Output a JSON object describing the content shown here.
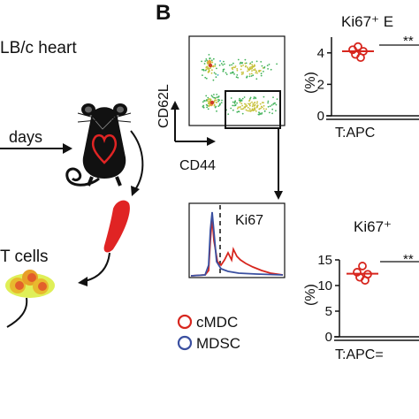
{
  "panel_a": {
    "heart_label": "LB/c heart",
    "arrow_label": "days",
    "cells_label": "T cells"
  },
  "panel_b": {
    "letter": "B",
    "dot_plot": {
      "y_axis": "CD62L",
      "x_axis": "CD44"
    },
    "histogram": {
      "marker": "Ki67"
    },
    "legend": [
      {
        "label": "cMDC",
        "color": "#d7261e"
      },
      {
        "label": "MDSC",
        "color": "#3a4fa0"
      }
    ]
  },
  "colors": {
    "red": "#d7261e",
    "blue": "#3a4fa0",
    "heart_red": "#e02424"
  },
  "chart_data": [
    {
      "type": "scatter",
      "title": "Ki67⁺ E",
      "ylabel": "(%)",
      "xlabel": "T:APC",
      "ylim": [
        0,
        5
      ],
      "yticks": [
        "0",
        "2",
        "4"
      ],
      "significance": "**",
      "series": [
        {
          "name": "cMDC",
          "values": [
            4.4,
            4.2,
            4.1,
            3.9,
            3.7
          ],
          "mean": 4.1
        }
      ]
    },
    {
      "type": "scatter",
      "title": "Ki67⁺",
      "ylabel": "(%)",
      "xlabel": "T:APC=",
      "ylim": [
        0,
        15
      ],
      "yticks": [
        "0",
        "5",
        "10",
        "15"
      ],
      "significance": "**",
      "series": [
        {
          "name": "cMDC",
          "values": [
            13.8,
            12.6,
            12.2,
            11.6,
            11.0
          ],
          "mean": 12.3
        }
      ]
    }
  ]
}
